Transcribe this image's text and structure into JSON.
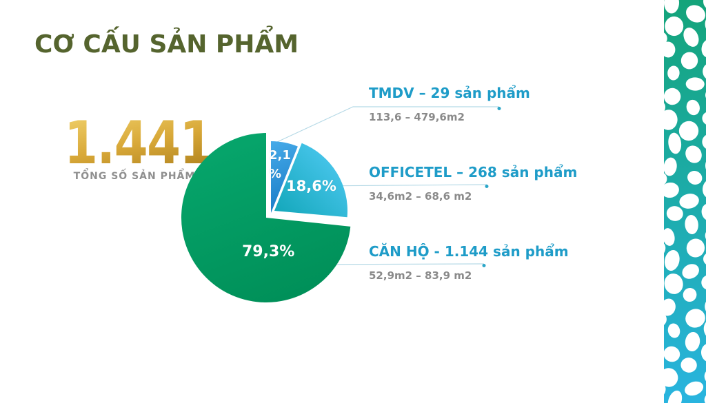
{
  "slide": {
    "title": "CƠ CẤU SẢN PHẨM",
    "total": {
      "value": "1.441",
      "label": "TỔNG SỐ SẢN PHẨM"
    }
  },
  "chart_data": {
    "type": "pie",
    "title": "CƠ CẤU SẢN PHẨM",
    "total_products": 1441,
    "legend_position": "right",
    "slices": [
      {
        "name": "TMDV",
        "percent": 2.1,
        "percent_label": "2,1 %",
        "count": 29,
        "heading": "TMDV – 29 sản phẩm",
        "area_range": "113,6 – 479,6m2",
        "color": "#2492d8"
      },
      {
        "name": "OFFICETEL",
        "percent": 18.6,
        "percent_label": "18,6%",
        "count": 268,
        "heading": "OFFICETEL – 268 sản phẩm",
        "area_range": "34,6m2 – 68,6 m2",
        "color": "#2bbce4"
      },
      {
        "name": "CĂN HỘ",
        "percent": 79.3,
        "percent_label": "79,3%",
        "count": 1144,
        "heading": "CĂN HỘ - 1.144 sản phẩm",
        "area_range": "52,9m2 – 83,9 m2",
        "color": "#009a60"
      }
    ]
  },
  "colors": {
    "title": "#55642e",
    "callout_heading": "#1e9cc8",
    "callout_sub": "#8a8a8a",
    "gold_top": "#eecd66",
    "gold_bottom": "#aa7d1b",
    "leader_line": "#b5d9e6",
    "leader_dot": "#2ba6c8",
    "pattern_top": "#14a47a",
    "pattern_bottom": "#29b4df"
  }
}
